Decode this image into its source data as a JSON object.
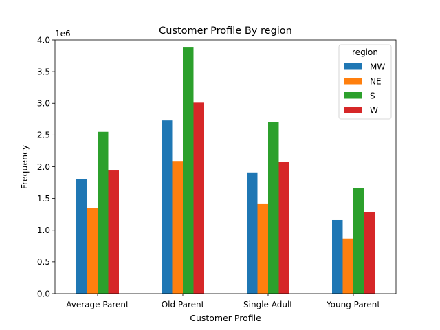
{
  "chart_data": {
    "type": "bar",
    "title": "Customer Profile By region",
    "xlabel": "Customer Profile",
    "ylabel": "Frequency",
    "y_multiplier_label": "1e6",
    "ylim": [
      0,
      4.0
    ],
    "yticks": [
      "0.0",
      "0.5",
      "1.0",
      "1.5",
      "2.0",
      "2.5",
      "3.0",
      "3.5",
      "4.0"
    ],
    "categories": [
      "Average Parent",
      "Old Parent",
      "Single Adult",
      "Young Parent"
    ],
    "legend": {
      "title": "region",
      "placement": "top-right"
    },
    "series": [
      {
        "name": "MW",
        "color": "#1f77b4",
        "values": [
          1.81,
          2.73,
          1.91,
          1.16
        ]
      },
      {
        "name": "NE",
        "color": "#ff7f0e",
        "values": [
          1.35,
          2.09,
          1.41,
          0.87
        ]
      },
      {
        "name": "S",
        "color": "#2ca02c",
        "values": [
          2.55,
          3.88,
          2.71,
          1.66
        ]
      },
      {
        "name": "W",
        "color": "#d62728",
        "values": [
          1.94,
          3.01,
          2.08,
          1.28
        ]
      }
    ],
    "grid": false
  }
}
